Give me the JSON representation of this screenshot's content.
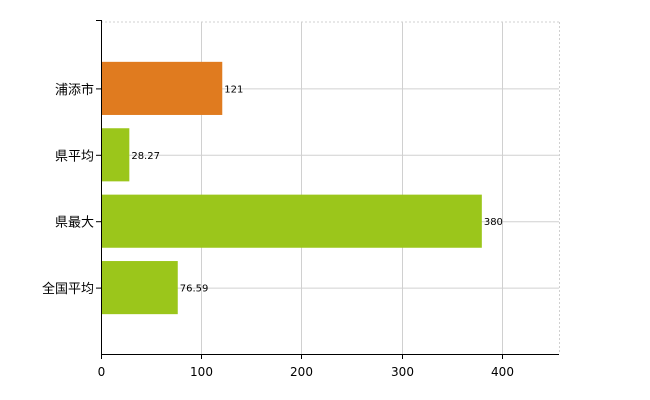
{
  "chart_data": {
    "type": "bar",
    "orientation": "horizontal",
    "categories": [
      "浦添市",
      "県平均",
      "県最大",
      "全国平均"
    ],
    "values": [
      121,
      28.27,
      380,
      76.59
    ],
    "value_labels": [
      "121",
      "28.27",
      "380",
      "76.59"
    ],
    "bar_colors": [
      "#e07b1f",
      "#9bc61b",
      "#9bc61b",
      "#9bc61b"
    ],
    "xlim": [
      0,
      457
    ],
    "xticks": [
      0,
      100,
      200,
      300,
      400
    ],
    "xtick_labels": [
      "0",
      "100",
      "200",
      "300",
      "400"
    ],
    "grid": true,
    "gridline_color": "#d0d0d0",
    "axis_color": "#000000"
  }
}
